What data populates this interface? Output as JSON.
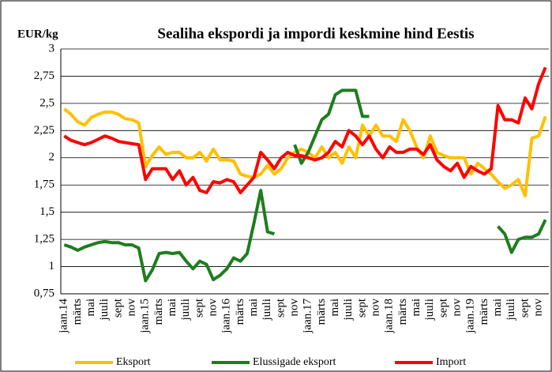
{
  "chart_data": {
    "type": "line",
    "title": "Sealiha ekspordi ja impordi  keskmine hind Eestis",
    "y_label": "EUR/kg",
    "categories": [
      "jaan.14",
      null,
      "märts",
      null,
      "mai",
      null,
      "juuli",
      null,
      "sept",
      null,
      "nov",
      null,
      "jaan.15",
      null,
      "märts",
      null,
      "mai",
      null,
      "juuli",
      null,
      "sept",
      null,
      "nov",
      null,
      "jaan.16",
      null,
      "märts",
      null,
      "mai",
      null,
      "juuli",
      null,
      "sept",
      null,
      "nov",
      null,
      "jaan.17",
      null,
      "märts",
      null,
      "mai",
      null,
      "juuli",
      null,
      "sept",
      null,
      "nov",
      null,
      "jaan.18",
      null,
      "märts",
      null,
      "mai",
      null,
      "juuli",
      null,
      "sept",
      null,
      "nov",
      null,
      "jaan.19",
      null,
      "märts",
      null,
      "mai",
      null,
      "juuli",
      null,
      "sept",
      null,
      "nov",
      null
    ],
    "series": [
      {
        "name": "Eksport",
        "color": "#ffc000",
        "values": [
          2.45,
          2.4,
          2.33,
          2.3,
          2.37,
          2.4,
          2.42,
          2.42,
          2.4,
          2.36,
          2.35,
          2.32,
          1.92,
          2.02,
          2.1,
          2.03,
          2.05,
          2.05,
          2.0,
          2.0,
          2.05,
          1.97,
          2.08,
          1.98,
          1.98,
          1.97,
          1.85,
          1.83,
          1.82,
          1.85,
          1.93,
          1.85,
          1.9,
          2.0,
          2.05,
          2.08,
          2.05,
          2.0,
          2.1,
          2.0,
          2.05,
          1.95,
          2.1,
          2.0,
          2.3,
          2.2,
          2.3,
          2.2,
          2.2,
          2.15,
          2.35,
          2.25,
          2.1,
          2.0,
          2.2,
          2.05,
          2.02,
          2.0,
          2.0,
          2.0,
          1.85,
          1.95,
          1.9,
          1.85,
          1.78,
          1.72,
          1.75,
          1.8,
          1.65,
          2.18,
          2.2,
          2.38
        ]
      },
      {
        "name": "Elussigade eksport",
        "color": "#1e7d1e",
        "values": [
          1.2,
          1.18,
          1.15,
          1.18,
          1.2,
          1.22,
          1.23,
          1.22,
          1.22,
          1.2,
          1.2,
          1.17,
          0.87,
          0.97,
          1.12,
          1.13,
          1.12,
          1.13,
          1.05,
          0.98,
          1.05,
          1.02,
          0.88,
          0.92,
          0.98,
          1.08,
          1.05,
          1.12,
          1.4,
          1.7,
          1.32,
          1.3,
          null,
          null,
          2.12,
          1.95,
          2.05,
          2.2,
          2.35,
          2.4,
          2.58,
          2.62,
          2.62,
          2.62,
          2.38,
          2.38,
          null,
          null,
          null,
          null,
          null,
          null,
          null,
          null,
          null,
          null,
          null,
          null,
          null,
          null,
          null,
          null,
          null,
          null,
          1.37,
          1.3,
          1.13,
          1.25,
          1.27,
          1.27,
          1.3,
          1.43
        ]
      },
      {
        "name": "Import",
        "color": "#ff0000",
        "values": [
          2.2,
          2.16,
          2.14,
          2.12,
          2.14,
          2.17,
          2.2,
          2.18,
          2.15,
          2.14,
          2.13,
          2.12,
          1.8,
          1.9,
          1.9,
          1.9,
          1.8,
          1.88,
          1.75,
          1.82,
          1.7,
          1.68,
          1.78,
          1.77,
          1.8,
          1.78,
          1.68,
          1.75,
          1.82,
          2.05,
          1.98,
          1.9,
          2.0,
          2.05,
          2.02,
          2.02,
          2.0,
          1.98,
          2.0,
          2.05,
          2.15,
          2.1,
          2.25,
          2.2,
          2.12,
          2.2,
          2.08,
          2.0,
          2.1,
          2.05,
          2.05,
          2.08,
          2.08,
          2.03,
          2.12,
          1.98,
          1.92,
          1.88,
          1.95,
          1.82,
          1.92,
          1.88,
          1.85,
          1.9,
          2.48,
          2.35,
          2.35,
          2.32,
          2.55,
          2.45,
          2.68,
          2.83
        ]
      }
    ],
    "ylim": [
      0.75,
      3
    ],
    "yticks": [
      {
        "value": 0.75,
        "label": "0,75"
      },
      1,
      {
        "value": 1.25,
        "label": "1,25"
      },
      {
        "value": 1.5,
        "label": "1,5"
      },
      {
        "value": 1.75,
        "label": "1,75"
      },
      2,
      {
        "value": 2.25,
        "label": "2,25"
      },
      {
        "value": 2.5,
        "label": "2,5"
      },
      {
        "value": 2.75,
        "label": "2,75"
      },
      3
    ],
    "grid": true,
    "legend": "bottom"
  }
}
